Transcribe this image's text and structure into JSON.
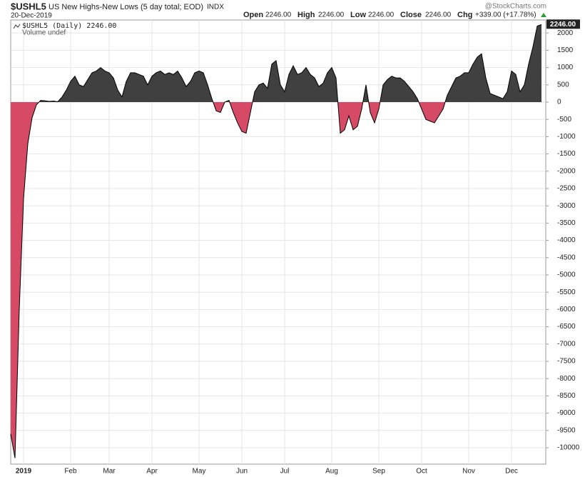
{
  "header": {
    "symbol": "$USHL5",
    "name": "US New Highs-New Lows (5 day total; EOD)",
    "exchange": "INDX",
    "date": "20-Dec-2019",
    "open_label": "Open",
    "open": "2246.00",
    "high_label": "High",
    "high": "2246.00",
    "low_label": "Low",
    "low": "2246.00",
    "close_label": "Close",
    "close": "2246.00",
    "chg_label": "Chg",
    "chg": "+339.00 (+17.78%)",
    "brand": "@StockCharts.com"
  },
  "legend": {
    "series": "$USHL5 (Daily) 2246.00",
    "volume": "Volume undef"
  },
  "chart_data": {
    "type": "area",
    "categories": [
      null,
      null,
      null,
      "2019",
      null,
      null,
      null,
      null,
      null,
      null,
      null,
      null,
      null,
      null,
      "Feb",
      null,
      null,
      null,
      null,
      null,
      null,
      null,
      null,
      "Mar",
      null,
      null,
      null,
      null,
      null,
      null,
      null,
      null,
      null,
      "Apr",
      null,
      null,
      null,
      null,
      null,
      null,
      null,
      null,
      null,
      null,
      "May",
      null,
      null,
      null,
      null,
      null,
      null,
      null,
      null,
      null,
      "Jun",
      null,
      null,
      null,
      null,
      null,
      null,
      null,
      null,
      null,
      "Jul",
      null,
      null,
      null,
      null,
      null,
      null,
      null,
      null,
      null,
      null,
      "Aug",
      null,
      null,
      null,
      null,
      null,
      null,
      null,
      null,
      null,
      null,
      "Sep",
      null,
      null,
      null,
      null,
      null,
      null,
      null,
      null,
      null,
      "Oct",
      null,
      null,
      null,
      null,
      null,
      null,
      null,
      null,
      null,
      null,
      "Nov",
      null,
      null,
      null,
      null,
      null,
      null,
      null,
      null,
      null,
      "Dec",
      null,
      null,
      null,
      null,
      null,
      null,
      null
    ],
    "values": [
      -9600,
      -10300,
      -6000,
      -2800,
      -1200,
      -450,
      -80,
      50,
      40,
      20,
      30,
      10,
      150,
      350,
      600,
      750,
      500,
      450,
      650,
      850,
      900,
      1000,
      900,
      850,
      700,
      350,
      150,
      600,
      850,
      850,
      800,
      750,
      500,
      750,
      850,
      900,
      800,
      850,
      800,
      900,
      700,
      450,
      600,
      850,
      900,
      850,
      500,
      100,
      -250,
      -300,
      0,
      50,
      -300,
      -600,
      -850,
      -900,
      -300,
      300,
      500,
      550,
      400,
      1100,
      1200,
      500,
      300,
      800,
      1050,
      800,
      850,
      1000,
      800,
      700,
      450,
      550,
      850,
      1000,
      700,
      -900,
      -800,
      -400,
      -800,
      -700,
      -200,
      500,
      -300,
      -600,
      -200,
      500,
      650,
      750,
      700,
      700,
      600,
      450,
      300,
      100,
      -200,
      -500,
      -550,
      -600,
      -400,
      -200,
      200,
      450,
      700,
      750,
      850,
      850,
      1100,
      1300,
      1400,
      700,
      250,
      200,
      150,
      100,
      300,
      900,
      800,
      300,
      500,
      1100,
      1600,
      2200,
      2246
    ],
    "last_value_label": "2246.00",
    "positive_color": "#404040",
    "negative_color": "#d64a66",
    "line_color": "#000000",
    "ylim": [
      -10475,
      2376
    ],
    "yticks": [
      -10000,
      -9500,
      -9000,
      -8500,
      -8000,
      -7500,
      -7000,
      -6500,
      -6000,
      -5500,
      -5000,
      -4500,
      -4000,
      -3500,
      -3000,
      -2500,
      -2000,
      -1500,
      -1000,
      -500,
      0,
      500,
      1000,
      1500,
      2000
    ],
    "grid": true
  }
}
